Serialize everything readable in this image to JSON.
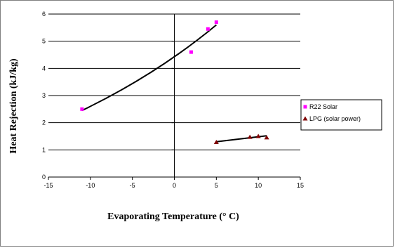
{
  "chart_data": {
    "type": "scatter",
    "title": "",
    "xlabel": "Evaporating Temperature (° C)",
    "ylabel": "Heat Rejection (kJ/kg)",
    "xlim": [
      -15,
      15
    ],
    "ylim": [
      0,
      6
    ],
    "xticks": [
      -15,
      -10,
      -5,
      0,
      5,
      10,
      15
    ],
    "yticks": [
      0,
      1,
      2,
      3,
      4,
      5,
      6
    ],
    "grid": "horizontal",
    "legend_position": "right",
    "series": [
      {
        "name": "R22 Solar",
        "marker": "square",
        "color": "#ff00ff",
        "x": [
          -11,
          2,
          4,
          5
        ],
        "y": [
          2.5,
          4.6,
          5.45,
          5.7
        ],
        "trendline": {
          "x": [
            -11,
            5
          ],
          "y": [
            2.45,
            5.6
          ],
          "color": "#000000"
        }
      },
      {
        "name": "LPG (solar power)",
        "marker": "triangle",
        "color": "#800000",
        "x": [
          5,
          9,
          10,
          11
        ],
        "y": [
          1.28,
          1.47,
          1.5,
          1.45
        ],
        "trendline": {
          "x": [
            5,
            11
          ],
          "y": [
            1.3,
            1.52
          ],
          "color": "#000000"
        }
      }
    ]
  }
}
